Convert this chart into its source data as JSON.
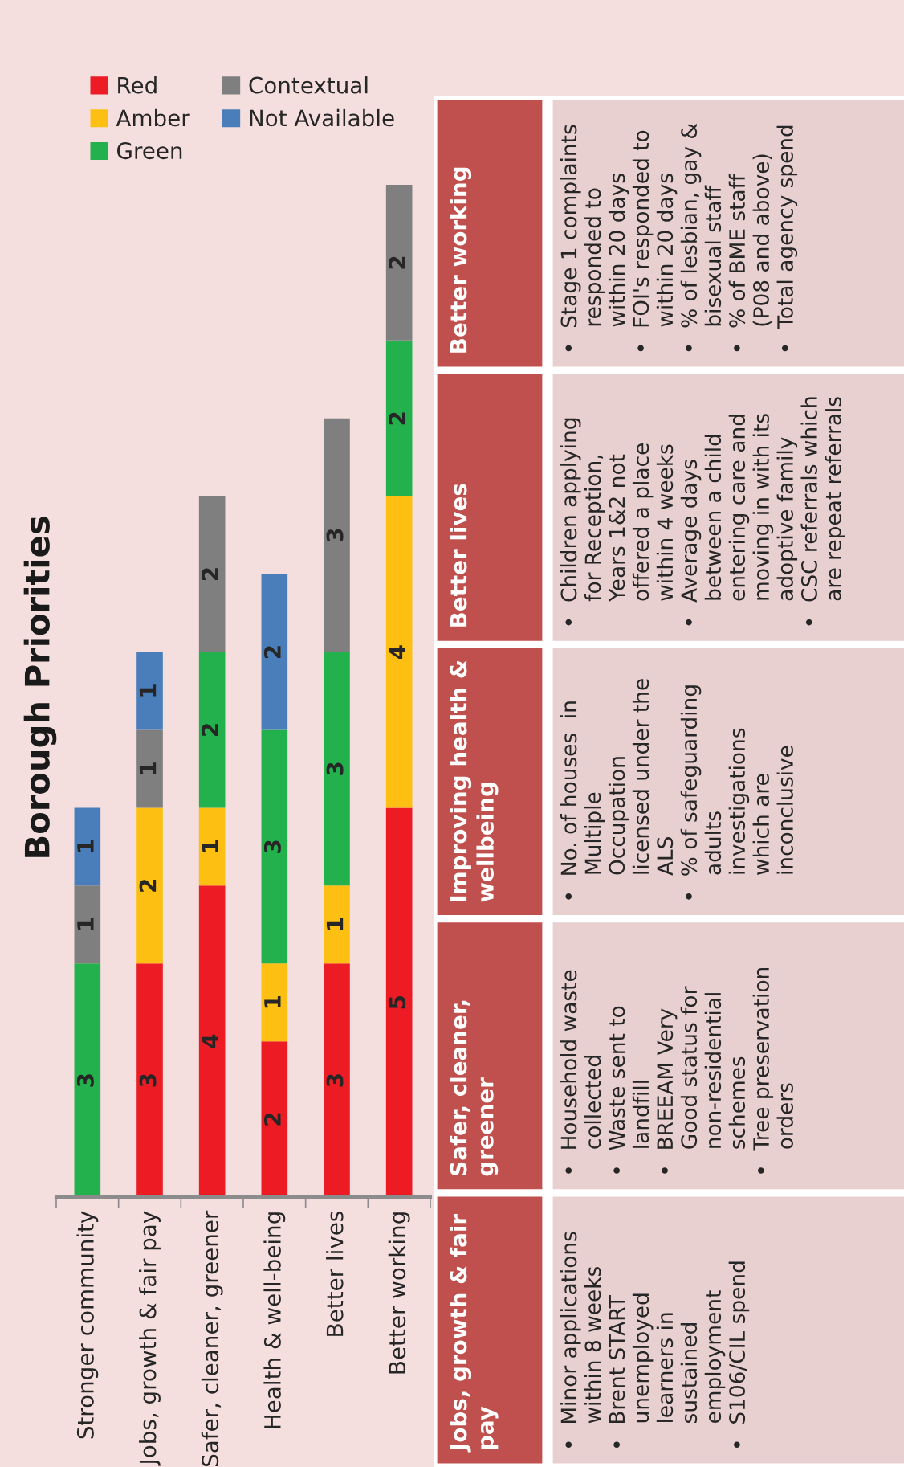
{
  "chart_data": {
    "type": "bar",
    "title": "Borough Priorities",
    "stacked": true,
    "data_labels": true,
    "legend": "top",
    "categories": [
      "Stronger community",
      "Jobs, growth & fair pay",
      "Safer, cleaner, greener",
      "Health & well-being",
      "Better lives",
      "Better working"
    ],
    "series": [
      {
        "name": "Red",
        "color": "#ed1c24",
        "values": [
          null,
          3,
          4,
          2,
          3,
          5
        ]
      },
      {
        "name": "Amber",
        "color": "#fdc012",
        "values": [
          null,
          2,
          1,
          1,
          1,
          4
        ]
      },
      {
        "name": "Green",
        "color": "#22b14c",
        "values": [
          3,
          null,
          2,
          3,
          3,
          2
        ]
      },
      {
        "name": "Contextual",
        "color": "#7f7f7f",
        "values": [
          1,
          1,
          2,
          null,
          3,
          2
        ]
      },
      {
        "name": "Not Available",
        "color": "#4a7ebb",
        "values": [
          1,
          1,
          null,
          2,
          null,
          null
        ]
      }
    ],
    "annotations": [
      "Jobs, growth & fair\npay",
      "•  Minor applications\n    within 8 weeks\n•  Brent START\n    unemployed\n    learners in\n    sustained\n    employment\n•  S106/CIL spend",
      "Safer, cleaner,\ngreener",
      "•  Household waste\n    collected\n•  Waste sent to\n    landfill\n•  BREEAM Very\n    Good status for\n    non-residential\n    schemes\n•  Tree preservation\n    orders",
      "Improving health &\nwellbeing",
      "•  No. of houses  in\n    Multiple\n    Occupation\n    licensed under the\n    ALS\n•  % of safeguarding\n    adults\n    investigations\n    which are\n    inconclusive",
      "Better lives",
      "•  Children applying\n    for Reception,\n    Years 1&2 not\n    offered a place\n    within 4 weeks\n•  Average days\n    between a child\n    entering care and\n    moving in with its\n    adoptive family\n•  CSC referrals which\n    are repeat referrals",
      "Better working",
      "•  Stage 1 complaints\n    responded to\n    within 20 days\n•  FOI's responded to\n    within 20 days\n•  % of lesbian, gay &\n    bisexual staff\n•  % of BME staff\n    (P08 and above)\n•  Total agency spend"
    ]
  }
}
